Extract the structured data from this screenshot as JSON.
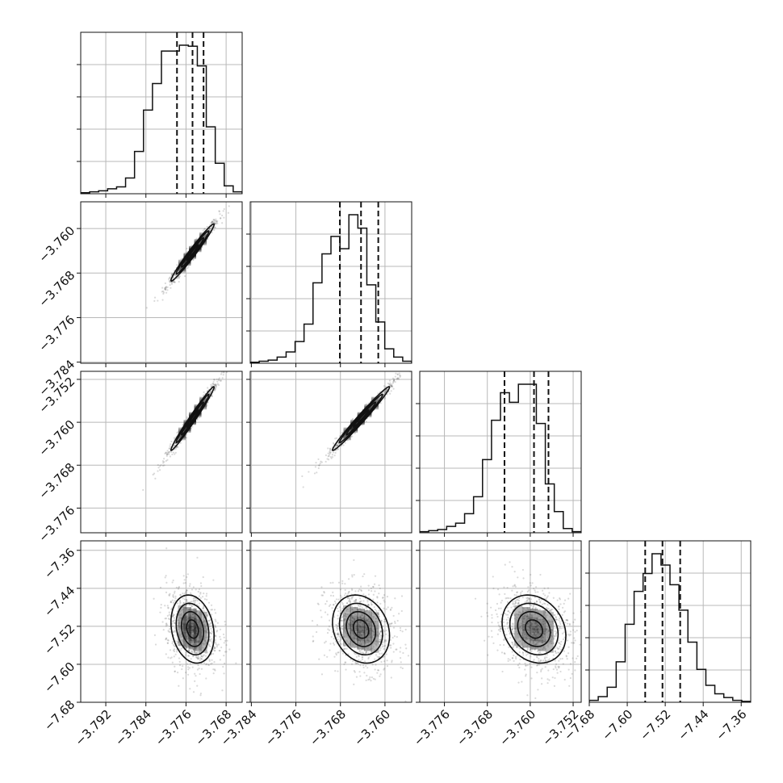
{
  "chart_data": {
    "type": "corner",
    "n_params": 4,
    "quantiles": [
      0.16,
      0.5,
      0.84
    ],
    "grid": true,
    "axis_ticks": [
      {
        "ticks": [
          -3.792,
          -3.784,
          -3.776,
          -3.768
        ],
        "labels": [
          "−3.792",
          "−3.784",
          "−3.776",
          "−3.768"
        ],
        "range": [
          -3.797,
          -3.7648
        ]
      },
      {
        "ticks": [
          -3.784,
          -3.776,
          -3.768,
          -3.76
        ],
        "labels": [
          "−3.784",
          "−3.776",
          "−3.768",
          "−3.760"
        ],
        "range": [
          -3.7842,
          -3.7552
        ]
      },
      {
        "ticks": [
          -3.776,
          -3.768,
          -3.76,
          -3.752
        ],
        "labels": [
          "−3.776",
          "−3.768",
          "−3.760",
          "−3.752"
        ],
        "range": [
          -3.7806,
          -3.7505
        ]
      },
      {
        "ticks": [
          -7.68,
          -7.6,
          -7.52,
          -7.44,
          -7.36
        ],
        "labels": [
          "−7.68",
          "−7.60",
          "−7.52",
          "−7.44",
          "−7.36"
        ],
        "range": [
          -7.68,
          -7.34
        ]
      }
    ],
    "marginals": [
      {
        "param": 0,
        "quantile_values": [
          -3.7778,
          -3.7747,
          -3.7725
        ],
        "counts": [
          1,
          2,
          3,
          5,
          7,
          16,
          43,
          85,
          112,
          145,
          145,
          151,
          150,
          130,
          68,
          31,
          8,
          2
        ]
      },
      {
        "param": 1,
        "quantile_values": [
          -3.7681,
          -3.7643,
          -3.7612
        ],
        "counts": [
          1,
          2,
          3,
          6,
          11,
          21,
          38,
          78,
          106,
          123,
          111,
          144,
          131,
          76,
          40,
          14,
          6,
          2
        ]
      },
      {
        "param": 2,
        "quantile_values": [
          -3.7648,
          -3.7593,
          -3.7566
        ],
        "counts": [
          1,
          2,
          3,
          6,
          9,
          18,
          34,
          69,
          106,
          132,
          123,
          140,
          140,
          103,
          46,
          20,
          4,
          1
        ]
      },
      {
        "param": 3,
        "quantile_values": [
          -7.5622,
          -7.5258,
          -7.4885
        ],
        "counts": [
          2,
          6,
          16,
          43,
          83,
          118,
          137,
          158,
          146,
          125,
          98,
          64,
          35,
          18,
          9,
          5,
          2,
          1
        ]
      }
    ],
    "pairs": [
      {
        "x": 0,
        "y": 1,
        "center": [
          -3.7747,
          -3.7643
        ],
        "sigma": [
          0.0021,
          0.0025
        ],
        "rho": 0.98
      },
      {
        "x": 0,
        "y": 2,
        "center": [
          -3.7747,
          -3.7593
        ],
        "sigma": [
          0.0021,
          0.0029
        ],
        "rho": 0.985
      },
      {
        "x": 1,
        "y": 2,
        "center": [
          -3.7643,
          -3.7593
        ],
        "sigma": [
          0.0025,
          0.0029
        ],
        "rho": 0.985
      },
      {
        "x": 0,
        "y": 3,
        "center": [
          -3.7747,
          -7.5258
        ],
        "sigma": [
          0.0021,
          0.035
        ],
        "rho": -0.2
      },
      {
        "x": 1,
        "y": 3,
        "center": [
          -3.7643,
          -7.5258
        ],
        "sigma": [
          0.0025,
          0.035
        ],
        "rho": -0.2
      },
      {
        "x": 2,
        "y": 3,
        "center": [
          -3.7593,
          -7.5258
        ],
        "sigma": [
          0.0029,
          0.035
        ],
        "rho": -0.2
      }
    ]
  }
}
